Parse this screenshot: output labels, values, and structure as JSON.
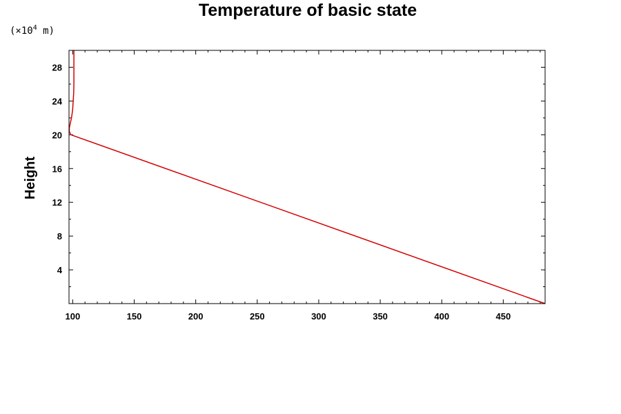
{
  "chart_data": {
    "type": "line",
    "title": "Temperature of basic state",
    "ylabel": "Height",
    "xlabel": "",
    "y_unit": {
      "base": "(×10",
      "exponent": "4",
      "suffix": " m)"
    },
    "xlim": [
      97,
      484
    ],
    "ylim": [
      0,
      30
    ],
    "x_ticks": [
      100,
      150,
      200,
      250,
      300,
      350,
      400,
      450
    ],
    "x_tick_labels": [
      "100",
      "150",
      "200",
      "250",
      "300",
      "350",
      "400",
      "450"
    ],
    "x_minor_step": 10,
    "y_ticks": [
      4,
      8,
      12,
      16,
      20,
      24,
      28
    ],
    "y_tick_labels": [
      "4",
      "8",
      "12",
      "16",
      "20",
      "24",
      "28"
    ],
    "y_minor_step": 2,
    "grid": false,
    "series": [
      {
        "color": "#d40000",
        "x": [
          484,
          98.5,
          97.2,
          97.3,
          97.8,
          98.4,
          99.0,
          99.5,
          100.0,
          100.4,
          100.8,
          101.0,
          101.0
        ],
        "y": [
          0,
          20,
          20.4,
          20.8,
          21.2,
          21.6,
          22.0,
          22.5,
          23.0,
          24.0,
          25.0,
          26.0,
          30
        ]
      }
    ]
  }
}
